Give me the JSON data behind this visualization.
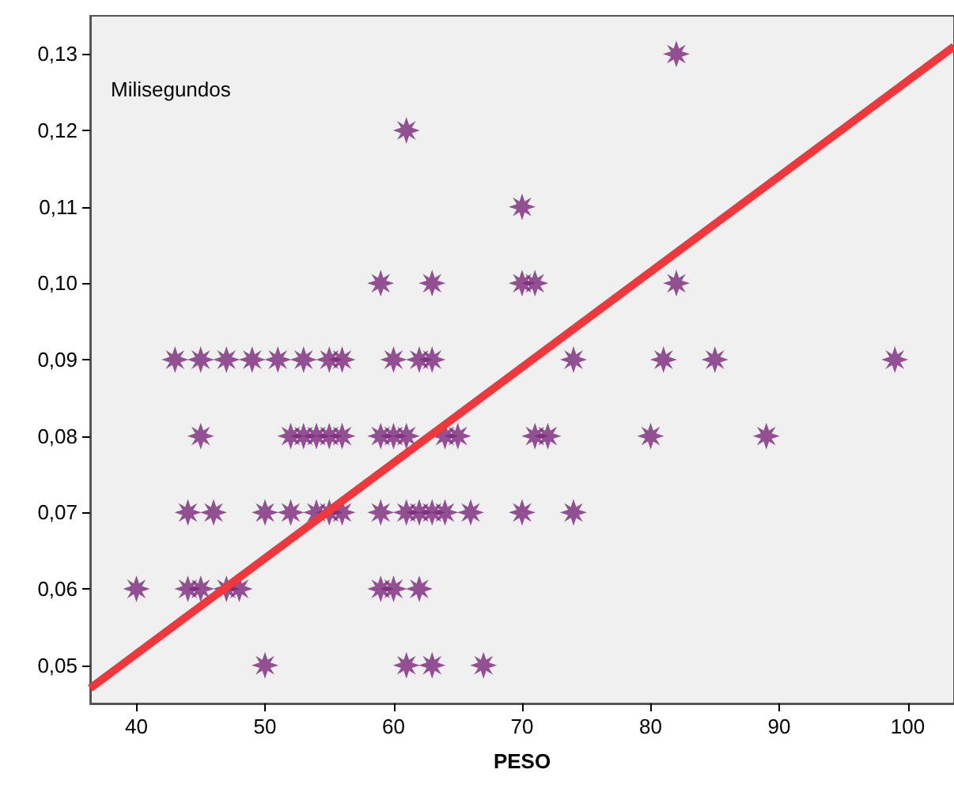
{
  "chart_data": {
    "type": "scatter",
    "xlabel": "PESO",
    "ylabel": "Milisegundos",
    "grid": false,
    "xlim": [
      36.4,
      103.6
    ],
    "ylim": [
      0.045,
      0.135
    ],
    "xticks": [
      40,
      50,
      60,
      70,
      80,
      90,
      100
    ],
    "yticks": [
      {
        "value": 0.05,
        "label": "0,05"
      },
      {
        "value": 0.06,
        "label": "0,06"
      },
      {
        "value": 0.07,
        "label": "0,07"
      },
      {
        "value": 0.08,
        "label": "0,08"
      },
      {
        "value": 0.09,
        "label": "0,09"
      },
      {
        "value": 0.1,
        "label": "0,10"
      },
      {
        "value": 0.11,
        "label": "0,11"
      },
      {
        "value": 0.12,
        "label": "0,12"
      },
      {
        "value": 0.13,
        "label": "0,13"
      }
    ],
    "series": [
      {
        "color": "#7b287c",
        "marker": "star",
        "x": [
          82,
          61,
          70,
          59,
          63,
          70,
          71,
          82,
          43,
          45,
          47,
          49,
          51,
          53,
          55,
          56,
          60,
          62,
          63,
          74,
          81,
          85,
          99,
          45,
          52,
          53,
          54,
          55,
          56,
          59,
          60,
          61,
          64,
          65,
          71,
          72,
          80,
          89,
          44,
          46,
          50,
          52,
          54,
          55,
          56,
          59,
          61,
          62,
          63,
          64,
          66,
          70,
          74,
          40,
          44,
          45,
          47,
          48,
          59,
          60,
          62,
          50,
          61,
          63,
          67
        ],
        "values": [
          0.13,
          0.12,
          0.11,
          0.1,
          0.1,
          0.1,
          0.1,
          0.1,
          0.09,
          0.09,
          0.09,
          0.09,
          0.09,
          0.09,
          0.09,
          0.09,
          0.09,
          0.09,
          0.09,
          0.09,
          0.09,
          0.09,
          0.09,
          0.08,
          0.08,
          0.08,
          0.08,
          0.08,
          0.08,
          0.08,
          0.08,
          0.08,
          0.08,
          0.08,
          0.08,
          0.08,
          0.08,
          0.08,
          0.07,
          0.07,
          0.07,
          0.07,
          0.07,
          0.07,
          0.07,
          0.07,
          0.07,
          0.07,
          0.07,
          0.07,
          0.07,
          0.07,
          0.07,
          0.06,
          0.06,
          0.06,
          0.06,
          0.06,
          0.06,
          0.06,
          0.06,
          0.05,
          0.05,
          0.05,
          0.05
        ]
      },
      {
        "type": "line",
        "marker": "none",
        "color": "#f0373c",
        "x": [
          36.4,
          103.6
        ],
        "values": [
          0.047,
          0.131
        ]
      }
    ]
  }
}
